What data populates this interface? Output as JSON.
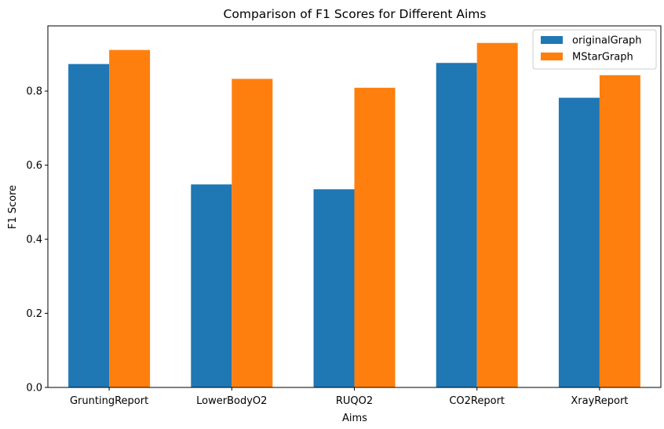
{
  "chart_data": {
    "type": "bar",
    "title": "Comparison of F1 Scores for Different Aims",
    "xlabel": "Aims",
    "ylabel": "F1 Score",
    "categories": [
      "GruntingReport",
      "LowerBodyO2",
      "RUQO2",
      "CO2Report",
      "XrayReport"
    ],
    "series": [
      {
        "name": "originalGraph",
        "color": "#1f77b4",
        "values": [
          0.873,
          0.548,
          0.535,
          0.876,
          0.782
        ]
      },
      {
        "name": "MStarGraph",
        "color": "#ff7f0e",
        "values": [
          0.911,
          0.833,
          0.809,
          0.93,
          0.843
        ]
      }
    ],
    "ylim": [
      0,
      0.976
    ],
    "yticks": [
      "0.0",
      "0.2",
      "0.4",
      "0.6",
      "0.8"
    ],
    "legend": "top-right",
    "grid": false
  }
}
